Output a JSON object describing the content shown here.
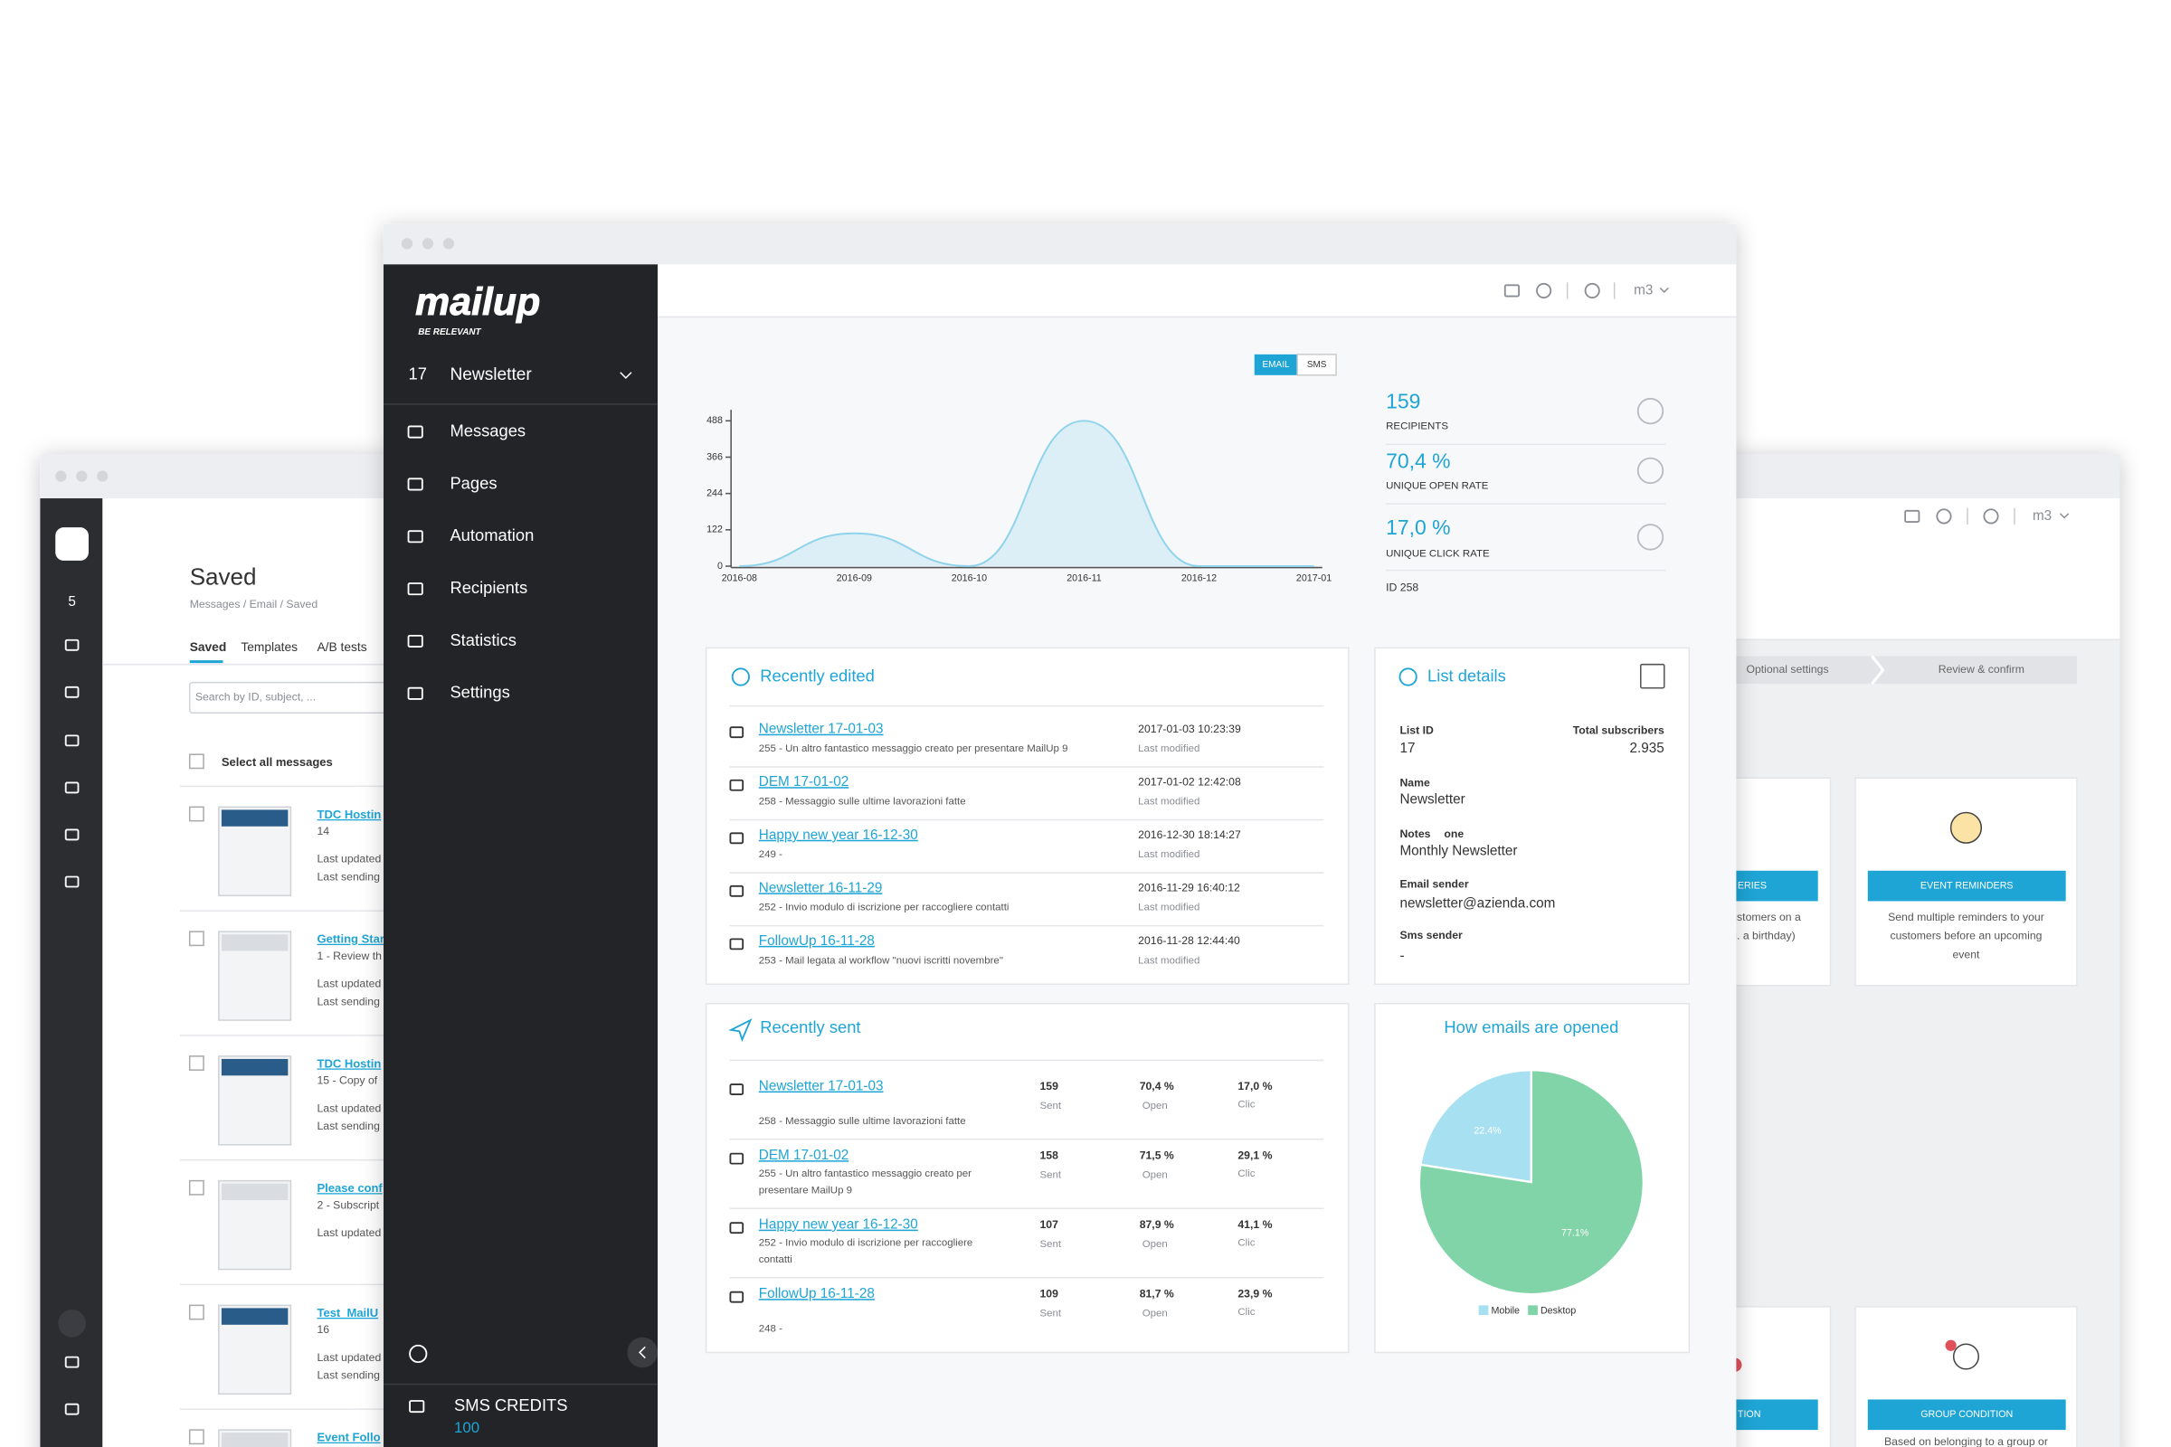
{
  "left_window": {
    "list_count": "5",
    "title": "Saved",
    "breadcrumb": "Messages / Email / Saved",
    "tabs": [
      "Saved",
      "Templates",
      "A/B tests"
    ],
    "search_placeholder": "Search by ID, subject, ...",
    "select_all": "Select all messages",
    "messages": [
      {
        "title": "TDC Hostin",
        "lines": [
          "14",
          "Last updated",
          "Last sending"
        ]
      },
      {
        "title": "Getting Star",
        "lines": [
          "1 - Review th",
          "Last updated",
          "Last sending"
        ]
      },
      {
        "title": "TDC Hostin",
        "lines": [
          "15 - Copy of",
          "Last updated",
          "Last sending"
        ]
      },
      {
        "title": "Please conf",
        "lines": [
          "2 - Subscript",
          "Last updated"
        ]
      },
      {
        "title": "Test_MailU",
        "lines": [
          "16",
          "Last updated",
          "Last sending"
        ]
      },
      {
        "title": "Event Follo"
      }
    ]
  },
  "right_window": {
    "user": "m3",
    "steps": [
      "Optional settings",
      "Review & confirm"
    ],
    "cards": [
      {
        "button": "ERIES",
        "text": [
          "ustomers on a",
          "g. a birthday)"
        ]
      },
      {
        "button": "EVENT REMINDERS",
        "text": [
          "Send multiple reminders to your",
          "customers before an upcoming",
          "event"
        ]
      },
      {
        "button": "TION"
      },
      {
        "button": "GROUP CONDITION",
        "text": [
          "Based on belonging to a group or"
        ]
      }
    ]
  },
  "main_window": {
    "logo": "mailup",
    "tagline": "BE RELEVANT",
    "list_id": "17",
    "list_name": "Newsletter",
    "nav": [
      "Messages",
      "Pages",
      "Automation",
      "Recipients",
      "Statistics",
      "Settings"
    ],
    "sms_credits_label": "SMS CREDITS",
    "sms_credits": "100",
    "user": "m3",
    "toggle": [
      "EMAIL",
      "SMS"
    ],
    "stats": [
      {
        "value": "159",
        "label": "RECIPIENTS"
      },
      {
        "value": "70,4 %",
        "label": "UNIQUE OPEN RATE"
      },
      {
        "value": "17,0 %",
        "label": "UNIQUE CLICK RATE"
      }
    ],
    "message_id": "ID 258",
    "recently_edited": {
      "title": "Recently edited",
      "items": [
        {
          "name": "Newsletter 17-01-03",
          "description": "255 - Un altro fantastico messaggio creato per presentare MailUp 9",
          "date": "2017-01-03 10:23:39",
          "date_label": "Last modified"
        },
        {
          "name": "DEM 17-01-02",
          "description": "258 - Messaggio sulle ultime lavorazioni fatte",
          "date": "2017-01-02 12:42:08",
          "date_label": "Last modified"
        },
        {
          "name": "Happy new year 16-12-30",
          "description": "249 -",
          "date": "2016-12-30 18:14:27",
          "date_label": "Last modified"
        },
        {
          "name": "Newsletter 16-11-29",
          "description": "252 - Invio modulo di iscrizione per raccogliere contatti",
          "date": "2016-11-29 16:40:12",
          "date_label": "Last modified"
        },
        {
          "name": "FollowUp 16-11-28",
          "description": "253 - Mail legata al workflow \"nuovi iscritti novembre\"",
          "date": "2016-11-28 12:44:40",
          "date_label": "Last modified"
        }
      ]
    },
    "list_details": {
      "title": "List details",
      "fields": [
        {
          "label": "List ID",
          "value": "17"
        },
        {
          "label": "Total subscribers",
          "value": "2.935"
        },
        {
          "label": "Name",
          "value": "Newsletter"
        },
        {
          "label": "Notes",
          "note": "one",
          "value": "Monthly Newsletter"
        },
        {
          "label": "Email sender",
          "value": "newsletter@azienda.com"
        },
        {
          "label": "Sms sender",
          "value": "-"
        }
      ]
    },
    "recently_sent": {
      "title": "Recently sent",
      "items": [
        {
          "name": "Newsletter 17-01-03",
          "description": [
            "258 - Messaggio sulle ultime lavorazioni fatte"
          ],
          "sent": "159",
          "sent_label": "Sent",
          "open": "70,4 %",
          "open_label": "Open",
          "clic": "17,0 %",
          "clic_label": "Clic"
        },
        {
          "name": "DEM 17-01-02",
          "description": [
            "255 - Un altro fantastico messaggio creato per",
            "presentare MailUp 9"
          ],
          "sent": "158",
          "sent_label": "Sent",
          "open": "71,5 %",
          "open_label": "Open",
          "clic": "29,1 %",
          "clic_label": "Clic"
        },
        {
          "name": "Happy new year 16-12-30",
          "description": [
            "252 - Invio modulo di iscrizione per raccogliere",
            "contatti"
          ],
          "sent": "107",
          "sent_label": "Sent",
          "open": "87,9 %",
          "open_label": "Open",
          "clic": "41,1 %",
          "clic_label": "Clic"
        },
        {
          "name": "FollowUp 16-11-28",
          "description": [
            "248 -"
          ],
          "sent": "109",
          "sent_label": "Sent",
          "open": "81,7 %",
          "open_label": "Open",
          "clic": "23,9 %",
          "clic_label": "Clic"
        }
      ]
    }
  },
  "chart_data": [
    {
      "type": "area",
      "categories": [
        "2016-08",
        "2016-09",
        "2016-10",
        "2016-11",
        "2016-12",
        "2017-01"
      ],
      "values": [
        0,
        110,
        0,
        488,
        0,
        0
      ],
      "ylim": [
        0,
        488
      ],
      "yticks": [
        0,
        122,
        244,
        366,
        488
      ],
      "color": "#8fd3ec"
    },
    {
      "type": "pie",
      "title": "How emails are opened",
      "categories": [
        "Mobile",
        "Desktop"
      ],
      "values": [
        22.4,
        77.1
      ],
      "value_labels": [
        "22.4%",
        "77.1%"
      ],
      "colors": [
        "#a6e0f1",
        "#80d4a8"
      ]
    }
  ]
}
